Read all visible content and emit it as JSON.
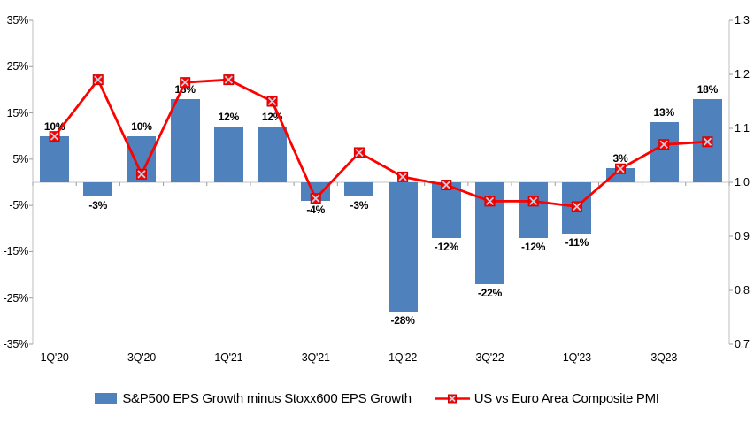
{
  "chart_data": {
    "type": "combo-bar-line",
    "n_points": 16,
    "grid": false,
    "x_tick_labels": [
      "1Q'20",
      "3Q'20",
      "1Q'21",
      "3Q'21",
      "1Q'22",
      "3Q'22",
      "1Q'23",
      "3Q23"
    ],
    "x_tick_slots": [
      0,
      2,
      4,
      6,
      8,
      10,
      12,
      14
    ],
    "left_axis": {
      "min": -35,
      "max": 35,
      "step": 10,
      "labels": [
        "35%",
        "25%",
        "15%",
        "5%",
        "-5%",
        "-15%",
        "-25%",
        "-35%"
      ]
    },
    "right_axis": {
      "min": 0.7,
      "max": 1.3,
      "step": 0.1,
      "labels": [
        "1.3",
        "1.2",
        "1.1",
        "1.0",
        "0.9",
        "0.8",
        "0.7"
      ]
    },
    "series": [
      {
        "name": "S&P500 EPS Growth minus Stoxx600 EPS Growth",
        "type": "bar",
        "axis": "left",
        "color": "#4F81BD",
        "values": [
          10,
          -3,
          10,
          18,
          12,
          12,
          -4,
          -3,
          -28,
          -12,
          -22,
          -12,
          -11,
          3,
          13,
          18
        ],
        "data_labels": [
          "10%",
          "-3%",
          "10%",
          "18%",
          "12%",
          "12%",
          "-4%",
          "-3%",
          "-28%",
          "-12%",
          "-22%",
          "-12%",
          "-11%",
          "3%",
          "13%",
          "18%"
        ]
      },
      {
        "name": "US vs Euro Area Composite PMI",
        "type": "line",
        "axis": "right",
        "color": "#FF0000",
        "marker": "x-square",
        "marker_x_color": "#C3D2E2",
        "values": [
          1.085,
          1.19,
          1.015,
          1.185,
          1.19,
          1.15,
          0.97,
          1.055,
          1.01,
          0.995,
          0.965,
          0.965,
          0.955,
          1.025,
          1.07,
          1.075
        ]
      }
    ],
    "colors": {
      "axis_line": "#BFBFBF",
      "tick": "#9B9B9B",
      "zero_line": "#C6C6C6"
    }
  }
}
